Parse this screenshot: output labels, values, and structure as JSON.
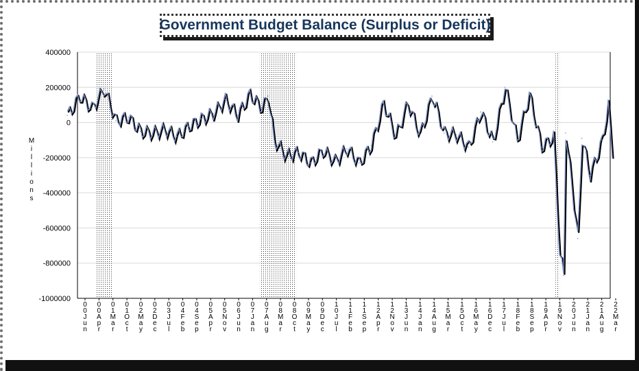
{
  "chart_data": {
    "type": "line",
    "title": "Government Budget Balance (Surplus or Deficit)",
    "ylabel": "Millions",
    "xlabel": "",
    "ylim": [
      -1000000,
      400000
    ],
    "yticks": [
      400000,
      200000,
      0,
      -200000,
      -400000,
      -600000,
      -800000,
      -1000000
    ],
    "ytick_labels": [
      "400000",
      "200000",
      "0",
      "-200000",
      "-400000",
      "-600000",
      "-800000",
      "-1000000"
    ],
    "xticks": [
      "00 Jun",
      "00 Apr",
      "01 Mar",
      "01 Oct",
      "02 May",
      "02 Dec",
      "03 Jul",
      "04 Feb",
      "04 Sep",
      "05 Apr",
      "05 Nov",
      "06 Jun",
      "07 Jan",
      "07 Aug",
      "08 Mar",
      "08 Oct",
      "09 May",
      "09 Dec",
      "10 Jul",
      "11 Feb",
      "11 Sep",
      "12 Apr",
      "12 Nov",
      "13 Jun",
      "14 Jan",
      "14 Aug",
      "15 Mar",
      "15 Oct",
      "16 May",
      "16 Dec",
      "17 Jul",
      "18 Feb",
      "18 Sep",
      "19 Apr",
      "19 Nov",
      "20 Jun",
      "21 Jan",
      "21 Aug",
      "22 Mar"
    ],
    "recessions": [
      [
        "2001-03",
        "2001-11"
      ],
      [
        "2007-12",
        "2009-06"
      ],
      [
        "2020-02",
        "2020-04"
      ]
    ],
    "series": [
      {
        "name": "",
        "color": "#7f93c8",
        "shadow_color": "#000000",
        "x": [
          "2000-01",
          "2000-07",
          "2001-01",
          "2001-07",
          "2002-01",
          "2002-07",
          "2003-01",
          "2003-07",
          "2004-01",
          "2004-07",
          "2005-01",
          "2005-07",
          "2006-01",
          "2006-07",
          "2007-01",
          "2007-07",
          "2008-01",
          "2008-04",
          "2008-07",
          "2009-01",
          "2009-07",
          "2010-01",
          "2010-07",
          "2011-01",
          "2011-07",
          "2012-01",
          "2012-07",
          "2013-01",
          "2013-07",
          "2014-01",
          "2014-07",
          "2015-01",
          "2015-07",
          "2016-01",
          "2016-07",
          "2017-01",
          "2017-07",
          "2018-01",
          "2018-07",
          "2019-01",
          "2019-07",
          "2020-01",
          "2020-04",
          "2020-06",
          "2020-07",
          "2021-01",
          "2021-03",
          "2021-07",
          "2022-01",
          "2022-04",
          "2022-06"
        ],
        "values": [
          40000,
          150000,
          80000,
          190000,
          10000,
          30000,
          -50000,
          -60000,
          -40000,
          -80000,
          -20000,
          20000,
          50000,
          130000,
          40000,
          160000,
          80000,
          150000,
          -100000,
          -190000,
          -170000,
          -230000,
          -160000,
          -220000,
          -150000,
          -230000,
          -130000,
          110000,
          -80000,
          110000,
          -70000,
          150000,
          -60000,
          -70000,
          -140000,
          60000,
          -110000,
          200000,
          -100000,
          160000,
          -140000,
          -80000,
          -740000,
          -870000,
          -60000,
          -660000,
          -90000,
          -300000,
          -100000,
          100000,
          -200000
        ]
      }
    ]
  }
}
